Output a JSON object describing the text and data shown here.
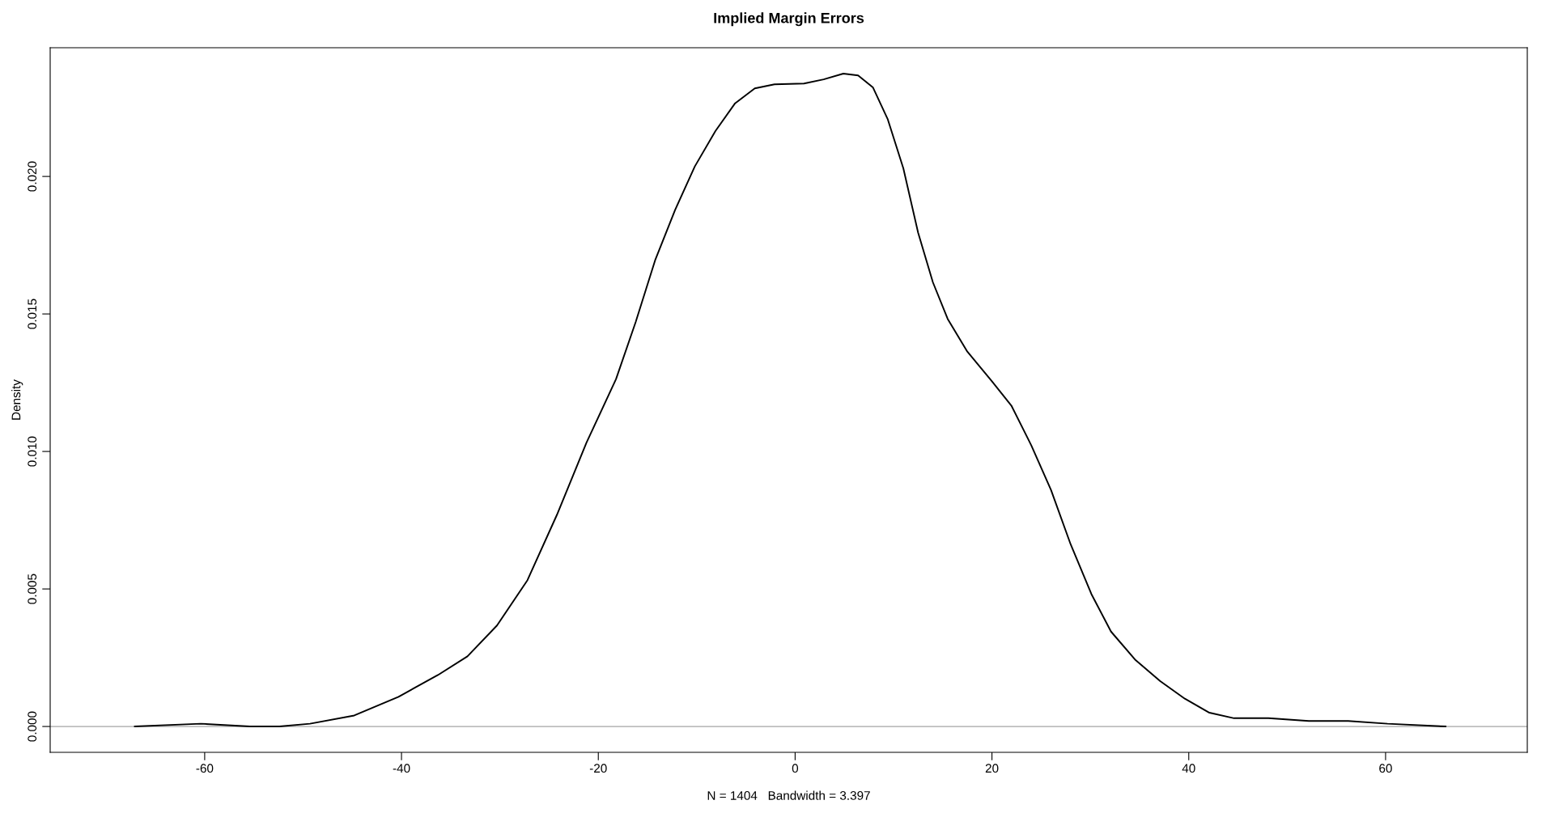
{
  "chart_data": {
    "type": "line",
    "title": "Implied Margin Errors",
    "xlabel": "N = 1404   Bandwidth = 3.397",
    "ylabel": "Density",
    "xlim": [
      -75.7,
      74.4
    ],
    "xticks": [
      -60,
      -40,
      -20,
      0,
      20,
      40,
      60
    ],
    "ylim": [
      -0.00094,
      0.02468
    ],
    "yticks": [
      {
        "value": 0,
        "label": "0.000"
      },
      {
        "value": 0.005,
        "label": "0.005"
      },
      {
        "value": 0.01,
        "label": "0.010"
      },
      {
        "value": 0.015,
        "label": "0.015"
      },
      {
        "value": 0.02,
        "label": "0.020"
      }
    ],
    "grid": false,
    "marker": "none",
    "line_style": "solid",
    "ref_lines": [
      {
        "axis": "y",
        "value": 0,
        "color": "#bebebe"
      }
    ],
    "series": [
      {
        "color": "#000000",
        "x": [
          -67.1,
          -60.4,
          -55.4,
          -52.4,
          -49.3,
          -44.8,
          -40.3,
          -36.3,
          -33.3,
          -30.3,
          -27.2,
          -24.2,
          -21.2,
          -18.2,
          -16.2,
          -14.2,
          -12.2,
          -10.2,
          -8.1,
          -6.1,
          -4.1,
          -2.1,
          0.9,
          2.9,
          4.9,
          6.4,
          7.9,
          9.4,
          11.0,
          12.5,
          14.0,
          15.5,
          17.5,
          20.0,
          22.0,
          24.0,
          26.0,
          28.0,
          30.1,
          32.1,
          34.6,
          37.1,
          39.6,
          42.1,
          44.6,
          48.1,
          52.2,
          56.2,
          60.2,
          66.1
        ],
        "values": [
          0.0,
          0.0001,
          0.0,
          0.0,
          0.0001,
          0.0004,
          0.00108,
          0.00187,
          0.00255,
          0.00367,
          0.00532,
          0.0077,
          0.01032,
          0.01263,
          0.01471,
          0.01698,
          0.01878,
          0.02036,
          0.02165,
          0.02266,
          0.0232,
          0.02335,
          0.02338,
          0.02353,
          0.02374,
          0.02367,
          0.02324,
          0.02209,
          0.02029,
          0.01795,
          0.01615,
          0.01482,
          0.01363,
          0.01255,
          0.01165,
          0.01022,
          0.0086,
          0.00662,
          0.00482,
          0.00345,
          0.00241,
          0.00165,
          0.00101,
          0.0005,
          0.0003,
          0.0003,
          0.0002,
          0.0002,
          0.0001,
          0.0
        ]
      }
    ]
  }
}
